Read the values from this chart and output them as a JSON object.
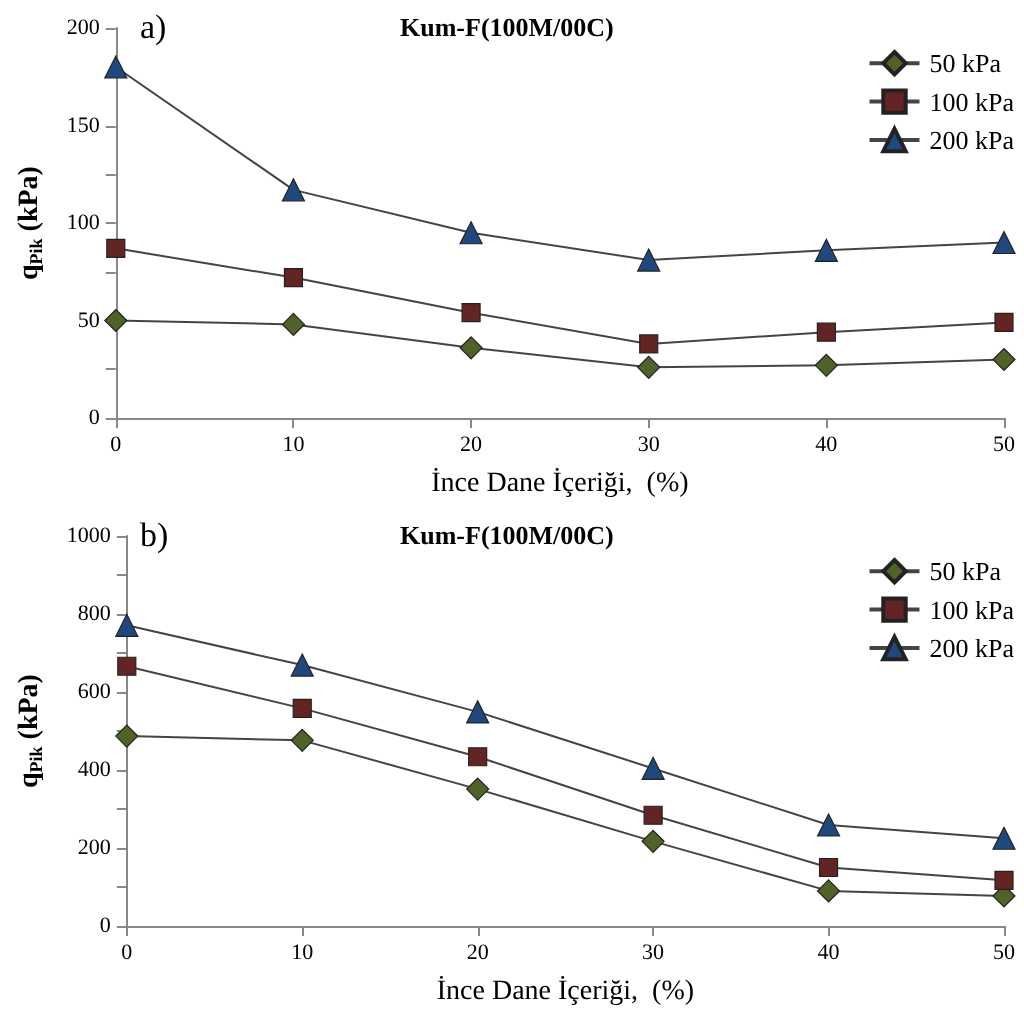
{
  "chart_data": [
    {
      "type": "line",
      "title": "Kum-F(100M/00C)",
      "xlabel": "İnce Dane İçeriği,  (%)",
      "ylabel": "q$_{Pik}$ (kPa)",
      "annotations": [
        "a)"
      ],
      "x": [
        0,
        10,
        20,
        30,
        40,
        50
      ],
      "series": [
        {
          "name": "50 kPa",
          "color": "#4f6228",
          "marker": "diamond",
          "values": [
            50,
            48,
            36,
            26,
            27,
            30
          ]
        },
        {
          "name": "100 kPa",
          "color": "#632523",
          "marker": "square",
          "values": [
            87,
            72,
            54,
            38,
            44,
            49
          ]
        },
        {
          "name": "200 kPa",
          "color": "#1f497d",
          "marker": "triangle",
          "values": [
            180,
            117,
            95,
            81,
            86,
            90
          ]
        }
      ],
      "xlim": [
        0,
        50
      ],
      "xticks": [
        0,
        10,
        20,
        30,
        40,
        50
      ],
      "ylim": [
        0,
        200
      ],
      "yticks": [
        0,
        {
          "value": 25,
          "label": null
        },
        50,
        {
          "value": 75,
          "label": null
        },
        100,
        {
          "value": 125,
          "label": null
        },
        150,
        {
          "value": 175,
          "label": null
        },
        200
      ],
      "grid": false,
      "legend": "top right"
    },
    {
      "type": "line",
      "title": "Kum-F(100M/00C)",
      "xlabel": "İnce Dane İçeriği,  (%)",
      "ylabel": "q$_{Pik}$ (kPa)",
      "annotations": [
        "b)"
      ],
      "x": [
        0,
        10,
        20,
        30,
        40,
        50
      ],
      "series": [
        {
          "name": "50 kPa",
          "color": "#4f6228",
          "marker": "diamond",
          "values": [
            487,
            476,
            351,
            217,
            90,
            77
          ]
        },
        {
          "name": "100 kPa",
          "color": "#632523",
          "marker": "square",
          "values": [
            666,
            558,
            434,
            284,
            150,
            117
          ]
        },
        {
          "name": "200 kPa",
          "color": "#1f497d",
          "marker": "triangle",
          "values": [
            771,
            669,
            549,
            404,
            259,
            225
          ]
        }
      ],
      "xlim": [
        0,
        50
      ],
      "xticks": [
        0,
        10,
        20,
        30,
        40,
        50
      ],
      "ylim": [
        0,
        1000
      ],
      "yticks": [
        0,
        {
          "value": 100,
          "label": null
        },
        200,
        {
          "value": 300,
          "label": null
        },
        400,
        {
          "value": 500,
          "label": null
        },
        600,
        {
          "value": 700,
          "label": null
        },
        800,
        {
          "value": 900,
          "label": null
        },
        1000
      ],
      "grid": false,
      "legend": "top right"
    }
  ]
}
